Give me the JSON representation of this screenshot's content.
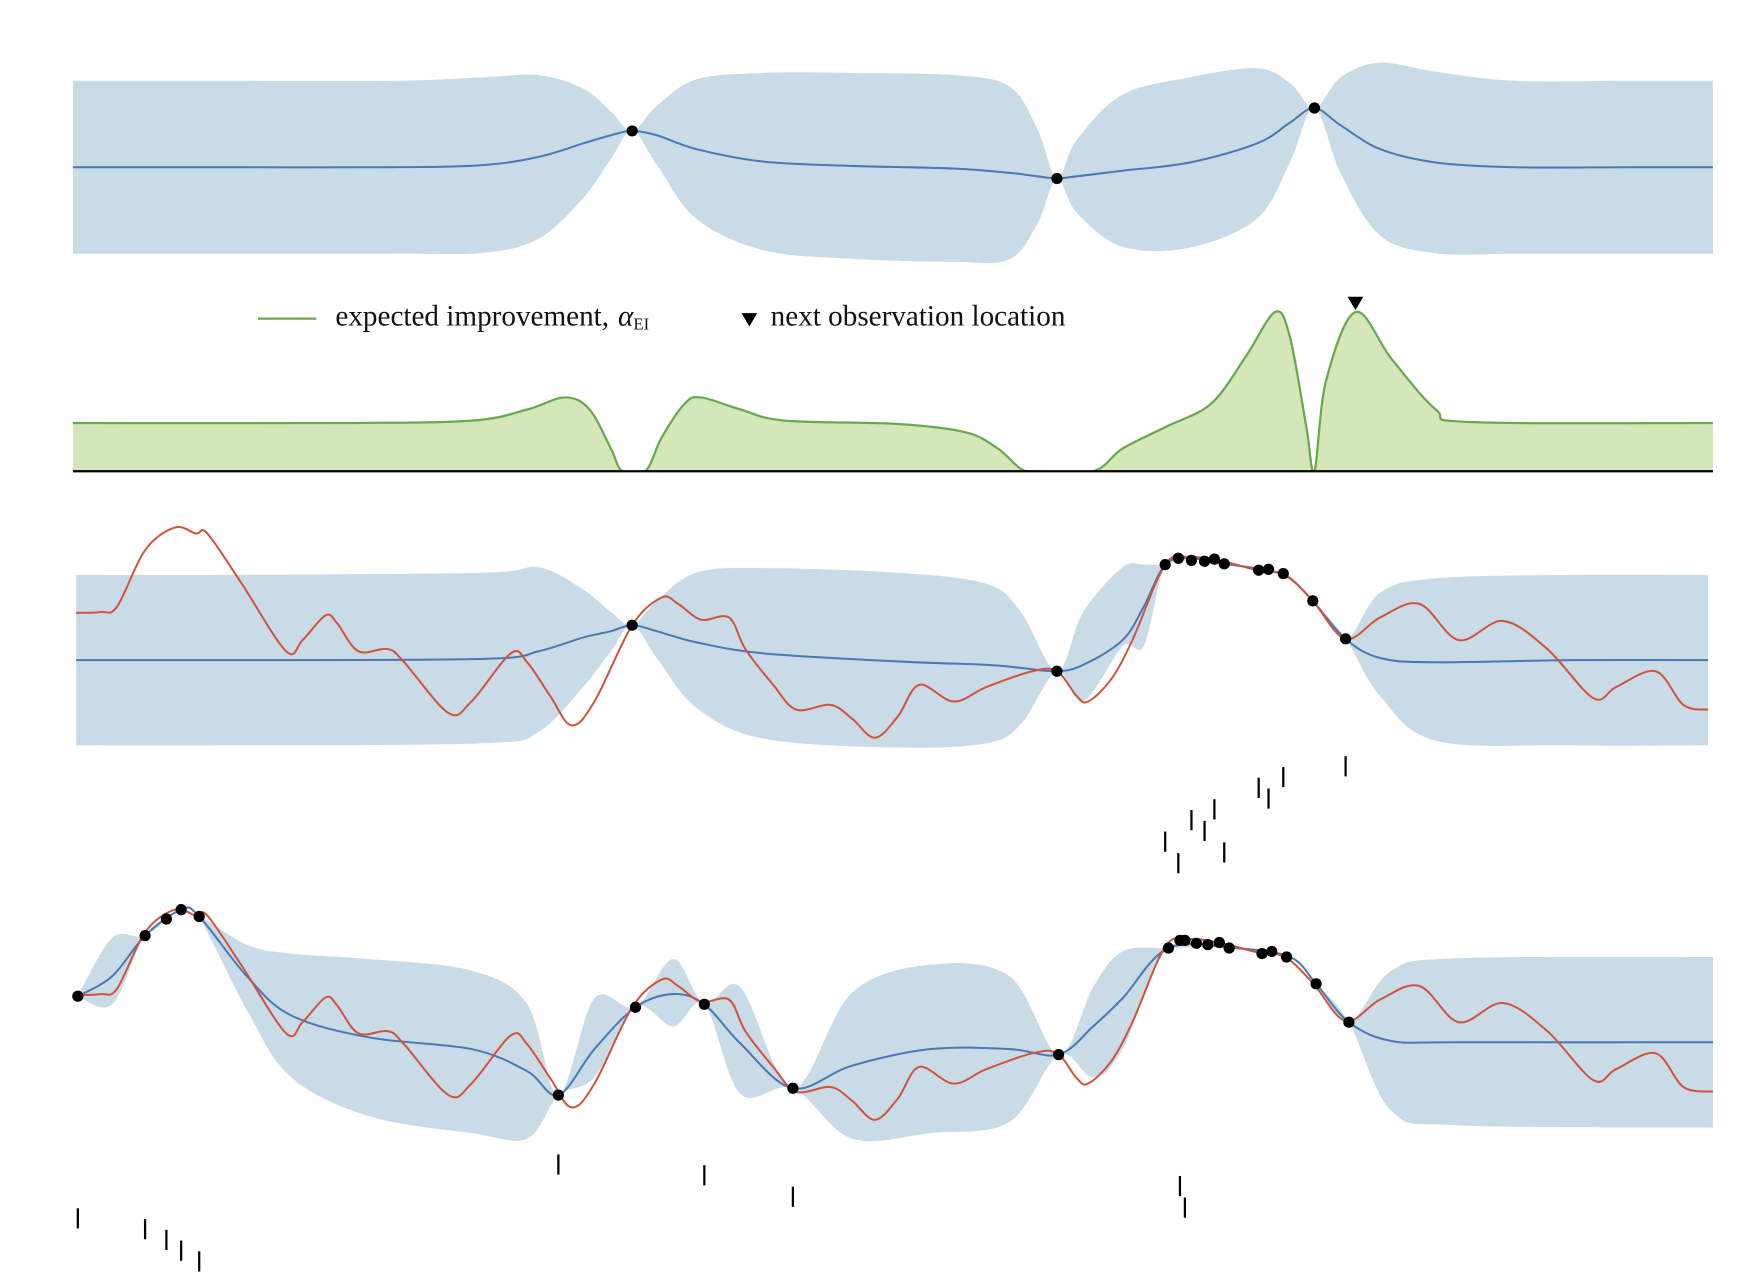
{
  "chart_data": [
    {
      "type": "gp",
      "xlim": [
        0,
        1
      ],
      "ylim": [
        -2.05,
        2.05
      ],
      "x": [
        0,
        0.092,
        0.195,
        0.25,
        0.284,
        0.311,
        0.328,
        0.341,
        0.356,
        0.38,
        0.421,
        0.476,
        0.537,
        0.571,
        0.588,
        0.6,
        0.612,
        0.64,
        0.681,
        0.722,
        0.742,
        0.757,
        0.773,
        0.797,
        0.831,
        0.879,
        0.947,
        1
      ],
      "mean": {
        "color": "#4b79b2",
        "values": [
          0,
          0,
          0,
          0.05,
          0.24,
          0.55,
          0.74,
          0.84,
          0.74,
          0.42,
          0.13,
          0.03,
          -0.03,
          -0.13,
          -0.21,
          -0.26,
          -0.21,
          -0.08,
          0.11,
          0.55,
          1.03,
          1.37,
          0.97,
          0.42,
          0.11,
          0,
          0,
          0
        ]
      },
      "band": {
        "color": "#c9dbe7",
        "upper": [
          2,
          2,
          2,
          2.08,
          2.13,
          1.82,
          1.29,
          0.84,
          1.42,
          2.03,
          2.18,
          2.18,
          2.13,
          1.87,
          0.89,
          -0.26,
          0.63,
          1.68,
          2.08,
          2.29,
          1.95,
          1.37,
          2.08,
          2.42,
          2.21,
          2,
          2,
          2
        ],
        "lower": [
          -2,
          -2,
          -2,
          -1.98,
          -1.65,
          -0.72,
          0.19,
          0.84,
          0.06,
          -1.19,
          -1.92,
          -2.12,
          -2.19,
          -2.13,
          -1.31,
          -0.26,
          -1.05,
          -1.84,
          -1.86,
          -1.19,
          0.11,
          1.37,
          -0.14,
          -1.58,
          -1.99,
          -2,
          -2,
          -2
        ]
      },
      "observations": {
        "color": "#000000",
        "x": [
          0.341,
          0.6,
          0.757
        ],
        "y": [
          0.84,
          -0.26,
          1.37
        ]
      }
    },
    {
      "type": "area",
      "xlim": [
        0,
        1
      ],
      "ylim": [
        0,
        3.5
      ],
      "legend_position": "top",
      "series": [
        {
          "name": "expected improvement,",
          "name_symbol": "α",
          "name_subscript": "EI",
          "color": "#6aa84f",
          "fill": "#d4e7b9",
          "x": [
            0,
            0.161,
            0.243,
            0.277,
            0.3,
            0.315,
            0.328,
            0.335,
            0.349,
            0.359,
            0.373,
            0.383,
            0.407,
            0.434,
            0.503,
            0.544,
            0.564,
            0.578,
            0.588,
            0.622,
            0.64,
            0.667,
            0.694,
            0.715,
            0.733,
            0.742,
            0.752,
            0.757,
            0.764,
            0.782,
            0.804,
            0.831,
            0.852,
            1
          ],
          "values": [
            1,
            1,
            1.05,
            1.28,
            1.53,
            1.28,
            0.47,
            0,
            0,
            0.7,
            1.4,
            1.53,
            1.28,
            1.05,
            0.98,
            0.81,
            0.47,
            0.05,
            0,
            0,
            0.47,
            0.93,
            1.4,
            2.37,
            3.3,
            2.79,
            0.93,
            0,
            1.86,
            3.3,
            2.33,
            1.28,
            1.02,
            1
          ]
        }
      ],
      "next_observation": {
        "name": "next observation location",
        "x": 0.782,
        "color": "#000000"
      }
    },
    {
      "type": "gp",
      "xlim": [
        0,
        1
      ],
      "ylim": [
        -2.6,
        3.4
      ],
      "x": [
        0.002,
        0.092,
        0.25,
        0.284,
        0.311,
        0.328,
        0.341,
        0.356,
        0.38,
        0.421,
        0.503,
        0.557,
        0.578,
        0.6,
        0.616,
        0.64,
        0.653,
        0.666,
        0.681,
        0.702,
        0.728,
        0.742,
        0.756,
        0.776,
        0.797,
        0.831,
        0.913,
        0.997
      ],
      "mean": {
        "color": "#4b79b2",
        "values": [
          0,
          0,
          0.03,
          0.21,
          0.53,
          0.68,
          0.82,
          0.68,
          0.42,
          0.16,
          -0.03,
          -0.11,
          -0.18,
          -0.26,
          -0.11,
          0.47,
          1.26,
          2.24,
          2.39,
          2.26,
          2.11,
          1.92,
          1.39,
          0.5,
          0.05,
          -0.05,
          0,
          0
        ]
      },
      "band": {
        "color": "#c9dbe7",
        "upper": [
          2,
          2,
          2.05,
          2.18,
          1.66,
          1.13,
          0.82,
          1.39,
          2.05,
          2.16,
          2.05,
          1.79,
          1.13,
          -0.26,
          1.13,
          2.18,
          2.24,
          2.24,
          2.39,
          2.26,
          2.11,
          1.97,
          1.39,
          0.5,
          1.58,
          1.92,
          2,
          2
        ],
        "lower": [
          -2,
          -2,
          -1.95,
          -1.68,
          -0.63,
          0.21,
          0.82,
          0.05,
          -1.11,
          -1.84,
          -2.05,
          -1.95,
          -1.5,
          -0.26,
          -0.97,
          0.32,
          0.34,
          2.24,
          2.39,
          2.26,
          2.11,
          1.87,
          1.39,
          0.5,
          -0.84,
          -1.89,
          -2,
          -2
        ]
      },
      "truth": {
        "color": "#d0543c",
        "x": [
          0.002,
          0.017,
          0.027,
          0.044,
          0.062,
          0.075,
          0.082,
          0.103,
          0.13,
          0.14,
          0.154,
          0.161,
          0.174,
          0.192,
          0.202,
          0.229,
          0.243,
          0.267,
          0.277,
          0.291,
          0.304,
          0.318,
          0.341,
          0.359,
          0.369,
          0.383,
          0.4,
          0.41,
          0.427,
          0.441,
          0.462,
          0.475,
          0.489,
          0.503,
          0.516,
          0.537,
          0.557,
          0.585,
          0.6,
          0.612,
          0.619,
          0.633,
          0.646,
          0.666,
          0.681,
          0.701,
          0.722,
          0.739,
          0.756,
          0.776,
          0.797,
          0.821,
          0.845,
          0.872,
          0.899,
          0.927,
          0.941,
          0.965,
          0.982,
          0.997
        ],
        "values": [
          1.11,
          1.13,
          1.26,
          2.58,
          3.11,
          2.97,
          2.97,
          1.79,
          0.21,
          0.47,
          1.05,
          0.87,
          0.21,
          0.26,
          -0.05,
          -1.24,
          -0.97,
          0.16,
          -0.05,
          -0.84,
          -1.53,
          -0.97,
          0.82,
          1.47,
          1.32,
          0.95,
          1,
          0.26,
          -0.58,
          -1.16,
          -1.05,
          -1.37,
          -1.82,
          -1.32,
          -0.58,
          -0.97,
          -0.63,
          -0.26,
          -0.26,
          -0.84,
          -0.97,
          -0.45,
          0.47,
          2.24,
          2.42,
          2.32,
          2.11,
          2,
          1.39,
          0.5,
          1,
          1.32,
          0.47,
          0.92,
          0.26,
          -0.89,
          -0.63,
          -0.26,
          -1.05,
          -1.16
        ]
      },
      "observations": {
        "color": "#000000",
        "x": [
          0.341,
          0.6,
          0.666,
          0.674,
          0.682,
          0.69,
          0.696,
          0.702,
          0.723,
          0.729,
          0.738,
          0.756,
          0.776
        ],
        "y": [
          0.82,
          -0.26,
          2.24,
          2.39,
          2.34,
          2.32,
          2.37,
          2.26,
          2.11,
          2.13,
          2.03,
          1.39,
          0.5
        ]
      },
      "rug": {
        "x": [
          0.776,
          0.738,
          0.723,
          0.729,
          0.696,
          0.682,
          0.69,
          0.666,
          0.702,
          0.674
        ],
        "rows": [
          0,
          1,
          2,
          3,
          4,
          5,
          6,
          7,
          8,
          9
        ]
      }
    },
    {
      "type": "gp",
      "xlim": [
        0,
        1
      ],
      "ylim": [
        -2.6,
        3.4
      ],
      "x": [
        0.003,
        0.024,
        0.044,
        0.066,
        0.077,
        0.106,
        0.133,
        0.181,
        0.243,
        0.277,
        0.296,
        0.318,
        0.343,
        0.366,
        0.385,
        0.407,
        0.439,
        0.475,
        0.523,
        0.571,
        0.601,
        0.622,
        0.64,
        0.668,
        0.708,
        0.742,
        0.758,
        0.778,
        0.804,
        0.845,
        1
      ],
      "mean": {
        "color": "#4b79b2",
        "values": [
          1.08,
          1.55,
          2.5,
          3.11,
          2.95,
          1.55,
          0.63,
          0.11,
          -0.16,
          -0.68,
          -1.24,
          -0.16,
          0.82,
          1.13,
          0.89,
          -0.03,
          -1.08,
          -0.55,
          -0.16,
          -0.16,
          -0.29,
          0.37,
          1.03,
          2.21,
          2.21,
          2,
          1.37,
          0.47,
          0.03,
          0,
          0
        ]
      },
      "band": {
        "color": "#c9dbe7",
        "upper": [
          1.08,
          2.45,
          2.5,
          3.11,
          2.97,
          2.29,
          2.08,
          1.95,
          1.68,
          0.89,
          -1.24,
          1.03,
          0.82,
          1.95,
          0.89,
          1.29,
          -1.08,
          1.16,
          1.82,
          1.55,
          -0.29,
          1.29,
          2.13,
          2.21,
          2.21,
          2,
          1.37,
          0.47,
          1.68,
          1.97,
          2
        ],
        "lower": [
          1.08,
          0.89,
          2.5,
          3.11,
          2.92,
          0.76,
          -0.82,
          -1.74,
          -2.13,
          -2.26,
          -1.24,
          -0.82,
          0.82,
          0.37,
          0.89,
          -1.21,
          -1.08,
          -2.26,
          -2.13,
          -1.87,
          -0.29,
          -0.82,
          -0.16,
          2.21,
          2.21,
          2,
          1.37,
          0.47,
          -1.61,
          -1.95,
          -2
        ]
      },
      "truth": {
        "color": "#d0543c",
        "x": [
          0.002,
          0.017,
          0.027,
          0.044,
          0.062,
          0.075,
          0.082,
          0.103,
          0.13,
          0.14,
          0.154,
          0.161,
          0.174,
          0.192,
          0.202,
          0.229,
          0.243,
          0.267,
          0.277,
          0.291,
          0.304,
          0.318,
          0.341,
          0.359,
          0.369,
          0.383,
          0.4,
          0.41,
          0.427,
          0.441,
          0.462,
          0.475,
          0.489,
          0.503,
          0.516,
          0.537,
          0.557,
          0.585,
          0.6,
          0.612,
          0.619,
          0.633,
          0.646,
          0.666,
          0.681,
          0.701,
          0.722,
          0.739,
          0.756,
          0.776,
          0.797,
          0.821,
          0.845,
          0.872,
          0.899,
          0.927,
          0.941,
          0.965,
          0.982,
          1
        ],
        "values": [
          1.11,
          1.13,
          1.26,
          2.58,
          3.11,
          2.97,
          2.97,
          1.79,
          0.21,
          0.47,
          1.05,
          0.87,
          0.21,
          0.26,
          -0.05,
          -1.24,
          -0.97,
          0.16,
          -0.05,
          -0.84,
          -1.53,
          -0.97,
          0.82,
          1.47,
          1.32,
          0.95,
          1,
          0.26,
          -0.58,
          -1.16,
          -1.05,
          -1.37,
          -1.82,
          -1.32,
          -0.58,
          -0.97,
          -0.63,
          -0.26,
          -0.26,
          -0.84,
          -0.97,
          -0.45,
          0.47,
          2.24,
          2.42,
          2.32,
          2.11,
          2,
          1.39,
          0.5,
          1,
          1.32,
          0.47,
          0.92,
          0.26,
          -0.89,
          -0.63,
          -0.26,
          -1.05,
          -1.16
        ]
      },
      "observations": {
        "color": "#000000",
        "x": [
          0.003,
          0.044,
          0.057,
          0.066,
          0.077,
          0.296,
          0.343,
          0.385,
          0.439,
          0.601,
          0.668,
          0.675,
          0.678,
          0.685,
          0.692,
          0.699,
          0.705,
          0.725,
          0.731,
          0.74,
          0.758,
          0.778
        ],
        "y": [
          1.08,
          2.5,
          2.89,
          3.11,
          2.95,
          -1.24,
          0.82,
          0.89,
          -1.08,
          -0.29,
          2.21,
          2.39,
          2.39,
          2.32,
          2.29,
          2.34,
          2.21,
          2.08,
          2.13,
          2,
          1.37,
          0.47
        ]
      },
      "rug": {
        "x": [
          0.296,
          0.385,
          0.675,
          0.439,
          0.678,
          0.003,
          0.044,
          0.057,
          0.066,
          0.077
        ],
        "rows": [
          0,
          1,
          2,
          3,
          4,
          5,
          6,
          7,
          8,
          9
        ]
      }
    }
  ]
}
